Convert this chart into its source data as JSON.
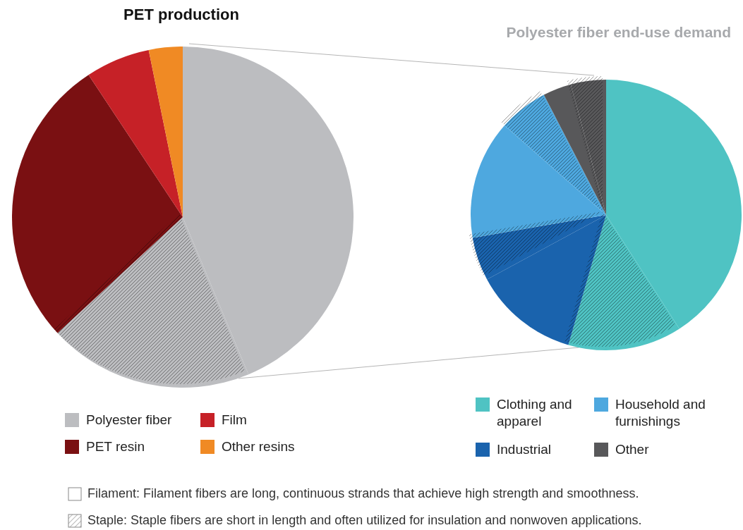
{
  "chart_data": [
    {
      "type": "pie",
      "title": "PET production",
      "categories": [
        "Polyester fiber",
        null,
        "PET resin",
        "Film",
        "Other resins"
      ],
      "values": [
        43.7,
        19.4,
        27.6,
        6.1,
        3.2
      ],
      "colors": [
        "#bcbdc0",
        "#bcbdc0",
        "#7a1012",
        "#c62127",
        "#f08a24"
      ],
      "legend": "bottom",
      "annotations": [
        "Filament: Filament fibers are long, continuous strands that achieve high strength and smoothness.",
        "Staple: Staple fibers are short in length and often utilized for insulation and nonwoven applications."
      ]
    },
    {
      "type": "pie",
      "title": "Polyester fiber end-use demand",
      "categories": [
        "Clothing and apparel",
        null,
        "Industrial",
        null,
        "Household and furnishings",
        null,
        "Other",
        null
      ],
      "values": [
        40.9,
        13.6,
        12.6,
        5.2,
        14.2,
        5.9,
        3.4,
        4.2
      ],
      "colors": [
        "#4fc3c3",
        "#4fc3c3",
        "#1a63ad",
        "#1a63ad",
        "#4ea8df",
        "#4ea8df",
        "#58585a",
        "#58585a"
      ],
      "legend": "bottom"
    }
  ]
}
